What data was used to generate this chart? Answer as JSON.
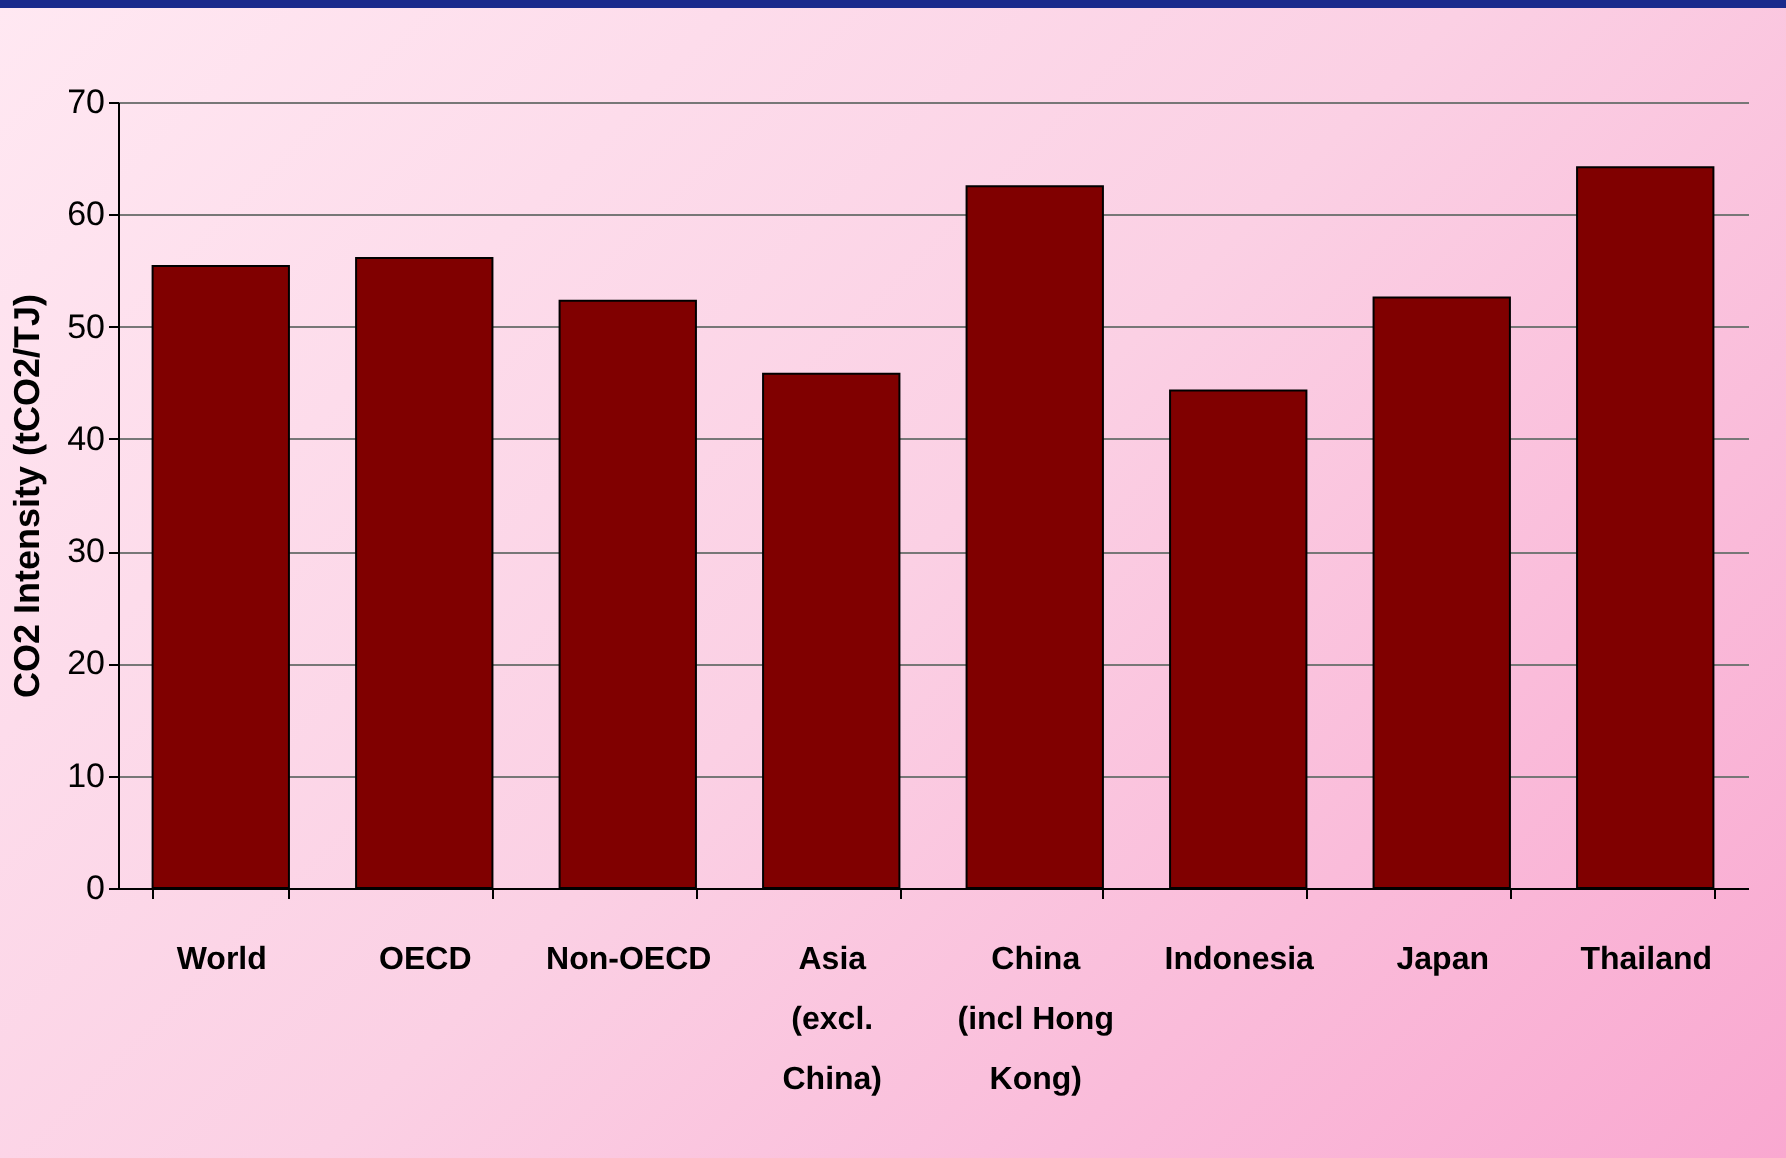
{
  "chart_data": {
    "type": "bar",
    "ylabel": "CO2 Intensity (tCO2/TJ)",
    "categories": [
      "World",
      "OECD",
      "Non-OECD",
      "Asia (excl. China)",
      "China (incl Hong Kong)",
      "Indonesia",
      "Japan",
      "Thailand"
    ],
    "values": [
      55.4,
      56.1,
      52.3,
      45.8,
      62.5,
      44.3,
      52.6,
      64.2
    ],
    "color": "#800000",
    "ylim": [
      0,
      70
    ],
    "yticks": [
      0,
      10,
      20,
      30,
      40,
      50,
      60,
      70
    ],
    "grid": "y"
  }
}
